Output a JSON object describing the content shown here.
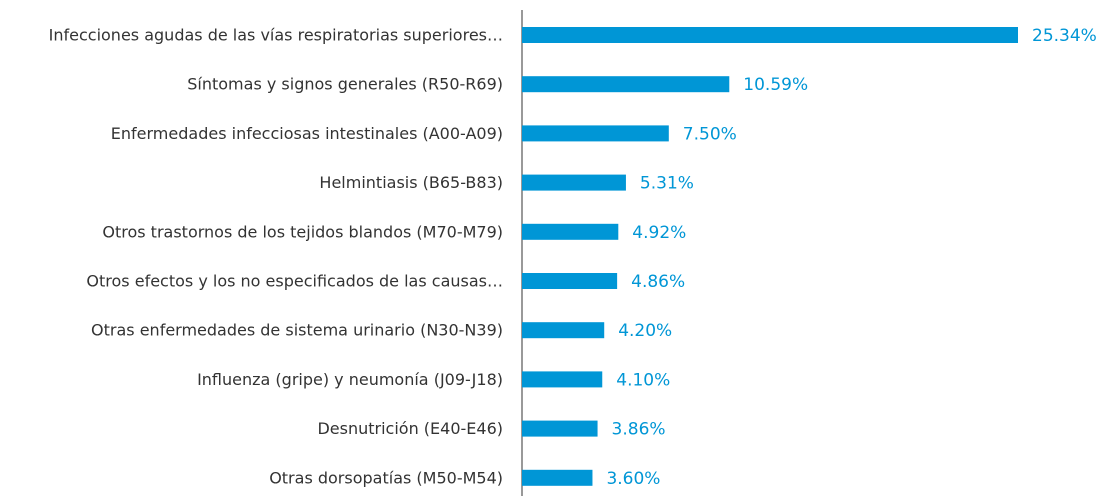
{
  "chart_data": {
    "type": "bar",
    "orientation": "horizontal",
    "categories": [
      "Infecciones agudas de las vías respiratorias superiores…",
      "Síntomas y signos generales (R50-R69)",
      "Enfermedades infecciosas intestinales (A00-A09)",
      "Helmintiasis (B65-B83)",
      "Otros trastornos de los tejidos blandos (M70-M79)",
      "Otros efectos y los no especificados de las causas…",
      "Otras enfermedades de sistema urinario (N30-N39)",
      "Influenza (gripe) y neumonía (J09-J18)",
      "Desnutrición (E40-E46)",
      "Otras dorsopatías (M50-M54)"
    ],
    "values": [
      25.34,
      10.59,
      7.5,
      5.31,
      4.92,
      4.86,
      4.2,
      4.1,
      3.86,
      3.6
    ],
    "value_labels": [
      "25.34%",
      "10.59%",
      "7.50%",
      "5.31%",
      "4.92%",
      "4.86%",
      "4.20%",
      "4.10%",
      "3.86%",
      "3.60%"
    ],
    "color": "#0096d6"
  }
}
